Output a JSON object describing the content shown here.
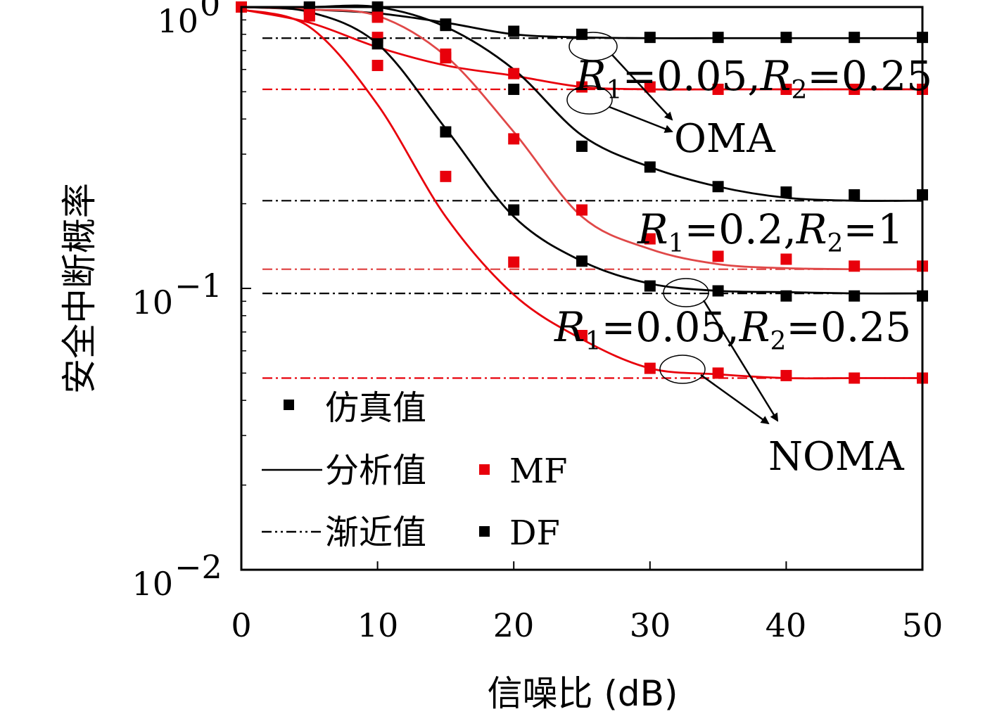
{
  "chart_data": {
    "type": "line",
    "xlabel": "信噪比 (dB)",
    "ylabel": "安全中断概率",
    "xlim": [
      0,
      50
    ],
    "ylim": [
      0.01,
      1
    ],
    "yscale": "log",
    "x_ticks": [
      "0",
      "10",
      "20",
      "30",
      "40",
      "50"
    ],
    "y_ticks": [
      {
        "base": "10",
        "exp": "0"
      },
      {
        "base": "10",
        "exp": "−1"
      },
      {
        "base": "10",
        "exp": "−2"
      }
    ],
    "grid": false,
    "colors": {
      "df": "#000000",
      "mf": "#e8000b",
      "mf_light": "#e04848"
    },
    "legend": {
      "position": "lower-left",
      "sim_label": "仿真值",
      "analysis_label": "分析值",
      "asymptote_label": "渐近值",
      "mf_label": "MF",
      "df_label": "DF"
    },
    "annotations": [
      {
        "id": "oma_rates",
        "R1": "0.05",
        "R2": "0.25"
      },
      {
        "id": "oma_label",
        "text": "OMA"
      },
      {
        "id": "noma_rates_high",
        "R1": "0.2",
        "R2": "1"
      },
      {
        "id": "noma_rates_low",
        "R1": "0.05",
        "R2": "0.25"
      },
      {
        "id": "noma_label",
        "text": "NOMA"
      }
    ],
    "series": [
      {
        "id": "oma_df",
        "color": "df",
        "analysis": {
          "x": [
            0,
            5,
            10,
            15,
            20,
            25,
            30,
            35,
            40,
            45,
            50
          ],
          "y": [
            1.0,
            0.98,
            0.95,
            0.88,
            0.8,
            0.78,
            0.775,
            0.775,
            0.775,
            0.775,
            0.775
          ]
        },
        "sim": {
          "x": [
            0,
            5,
            10,
            15,
            20,
            25,
            30,
            35,
            40,
            45,
            50
          ],
          "y": [
            1.0,
            1.0,
            0.93,
            0.86,
            0.82,
            0.8,
            0.78,
            0.78,
            0.78,
            0.78,
            0.78
          ]
        },
        "asymptote": 0.775
      },
      {
        "id": "oma_mf",
        "color": "mf",
        "analysis": {
          "x": [
            0,
            5,
            10,
            15,
            20,
            25,
            30,
            35,
            40,
            45,
            50
          ],
          "y": [
            0.98,
            0.88,
            0.72,
            0.62,
            0.57,
            0.52,
            0.51,
            0.51,
            0.51,
            0.51,
            0.51
          ]
        },
        "sim": {
          "x": [
            0,
            5,
            10,
            15,
            20,
            25,
            30,
            35,
            40,
            45,
            50
          ],
          "y": [
            1.0,
            0.93,
            0.78,
            0.66,
            0.58,
            0.52,
            0.52,
            0.51,
            0.51,
            0.51,
            0.51
          ]
        },
        "asymptote": 0.51
      },
      {
        "id": "noma_r1_02_df",
        "color": "df",
        "analysis": {
          "x": [
            0,
            5,
            10,
            15,
            20,
            25,
            30,
            35,
            40,
            45,
            50
          ],
          "y": [
            1.0,
            1.0,
            1.0,
            0.85,
            0.6,
            0.35,
            0.27,
            0.23,
            0.21,
            0.205,
            0.205
          ]
        },
        "sim": {
          "x": [
            0,
            5,
            10,
            15,
            20,
            25,
            30,
            35,
            40,
            45,
            50
          ],
          "y": [
            1.0,
            1.0,
            1.0,
            0.87,
            0.51,
            0.32,
            0.27,
            0.23,
            0.22,
            0.215,
            0.215
          ]
        },
        "asymptote": 0.205
      },
      {
        "id": "noma_r1_02_mf",
        "color": "mf_light",
        "analysis": {
          "x": [
            0,
            5,
            10,
            15,
            20,
            25,
            30,
            35,
            40,
            45,
            50
          ],
          "y": [
            1.0,
            0.98,
            0.93,
            0.67,
            0.36,
            0.18,
            0.138,
            0.122,
            0.118,
            0.117,
            0.117
          ]
        },
        "sim": {
          "x": [
            0,
            5,
            10,
            15,
            20,
            25,
            30,
            35,
            40,
            45,
            50
          ],
          "y": [
            1.0,
            0.98,
            0.92,
            0.68,
            0.34,
            0.19,
            0.15,
            0.13,
            0.127,
            0.12,
            0.12
          ]
        },
        "asymptote": 0.117
      },
      {
        "id": "noma_r1_005_df",
        "color": "df",
        "analysis": {
          "x": [
            0,
            5,
            10,
            15,
            20,
            25,
            30,
            35,
            40,
            45,
            50
          ],
          "y": [
            1.0,
            0.96,
            0.74,
            0.37,
            0.18,
            0.125,
            0.104,
            0.098,
            0.097,
            0.096,
            0.096
          ]
        },
        "sim": {
          "x": [
            0,
            5,
            10,
            15,
            20,
            25,
            30,
            35,
            40,
            45,
            50
          ],
          "y": [
            1.0,
            0.98,
            0.74,
            0.36,
            0.19,
            0.125,
            0.102,
            0.098,
            0.094,
            0.094,
            0.094
          ]
        },
        "asymptote": 0.096
      },
      {
        "id": "noma_r1_005_mf",
        "color": "mf",
        "analysis": {
          "x": [
            0,
            5,
            10,
            15,
            20,
            25,
            30,
            35,
            40,
            45,
            50
          ],
          "y": [
            0.98,
            0.85,
            0.45,
            0.18,
            0.095,
            0.066,
            0.052,
            0.0495,
            0.048,
            0.048,
            0.048
          ]
        },
        "sim": {
          "x": [
            0,
            5,
            10,
            15,
            20,
            25,
            30,
            35,
            40,
            45,
            50
          ],
          "y": [
            1.0,
            0.94,
            0.62,
            0.25,
            0.124,
            0.068,
            0.052,
            0.05,
            0.049,
            0.048,
            0.048
          ]
        },
        "asymptote": 0.048
      }
    ]
  }
}
